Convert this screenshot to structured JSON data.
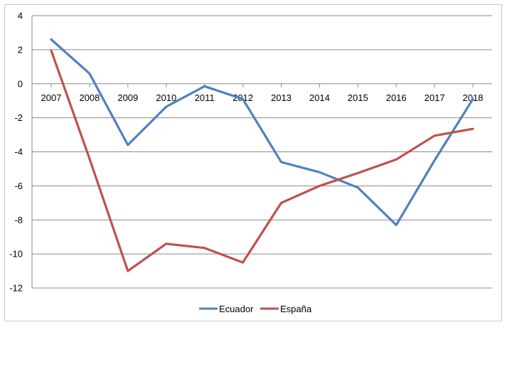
{
  "chart_data": {
    "type": "line",
    "title": "",
    "xlabel": "",
    "ylabel": "",
    "x": [
      "2007",
      "2008",
      "2009",
      "2010",
      "2011",
      "2012",
      "2013",
      "2014",
      "2015",
      "2016",
      "2017",
      "2018"
    ],
    "ylim": [
      -12,
      4
    ],
    "yticks": [
      4,
      2,
      0,
      -2,
      -4,
      -6,
      -8,
      -10,
      -12
    ],
    "grid": true,
    "legend": "bottom",
    "series": [
      {
        "name": "Ecuador",
        "color": "#4f81bd",
        "values": [
          2.6,
          0.6,
          -3.6,
          -1.35,
          -0.15,
          -0.9,
          -4.6,
          -5.2,
          -6.1,
          -8.3,
          -4.5,
          -0.9
        ]
      },
      {
        "name": "España",
        "color": "#c0504d",
        "values": [
          1.95,
          -4.4,
          -11.0,
          -9.4,
          -9.65,
          -10.5,
          -7.0,
          -6.0,
          -5.25,
          -4.45,
          -3.05,
          -2.65
        ]
      }
    ]
  }
}
